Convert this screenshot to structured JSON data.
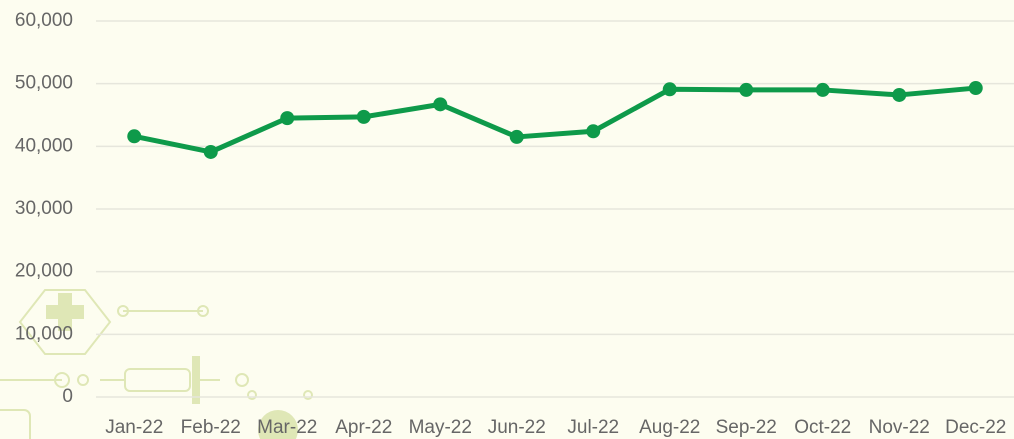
{
  "chart_data": {
    "type": "line",
    "categories": [
      "Jan-22",
      "Feb-22",
      "Mar-22",
      "Apr-22",
      "May-22",
      "Jun-22",
      "Jul-22",
      "Aug-22",
      "Sep-22",
      "Oct-22",
      "Nov-22",
      "Dec-22"
    ],
    "series": [
      {
        "color": "#0e9a4a",
        "values": [
          41600,
          39100,
          44500,
          44700,
          46700,
          41500,
          42400,
          49100,
          49000,
          49000,
          48200,
          49300
        ]
      }
    ],
    "ylim": [
      0,
      60000
    ],
    "yticks": [
      0,
      {
        "value": 10000,
        "label": "10,000"
      },
      {
        "value": 20000,
        "label": "20,000"
      },
      {
        "value": 30000,
        "label": "30,000"
      },
      {
        "value": 40000,
        "label": "40,000"
      },
      {
        "value": 50000,
        "label": "50,000"
      },
      {
        "value": 60000,
        "label": "60,000"
      }
    ],
    "grid": true
  }
}
